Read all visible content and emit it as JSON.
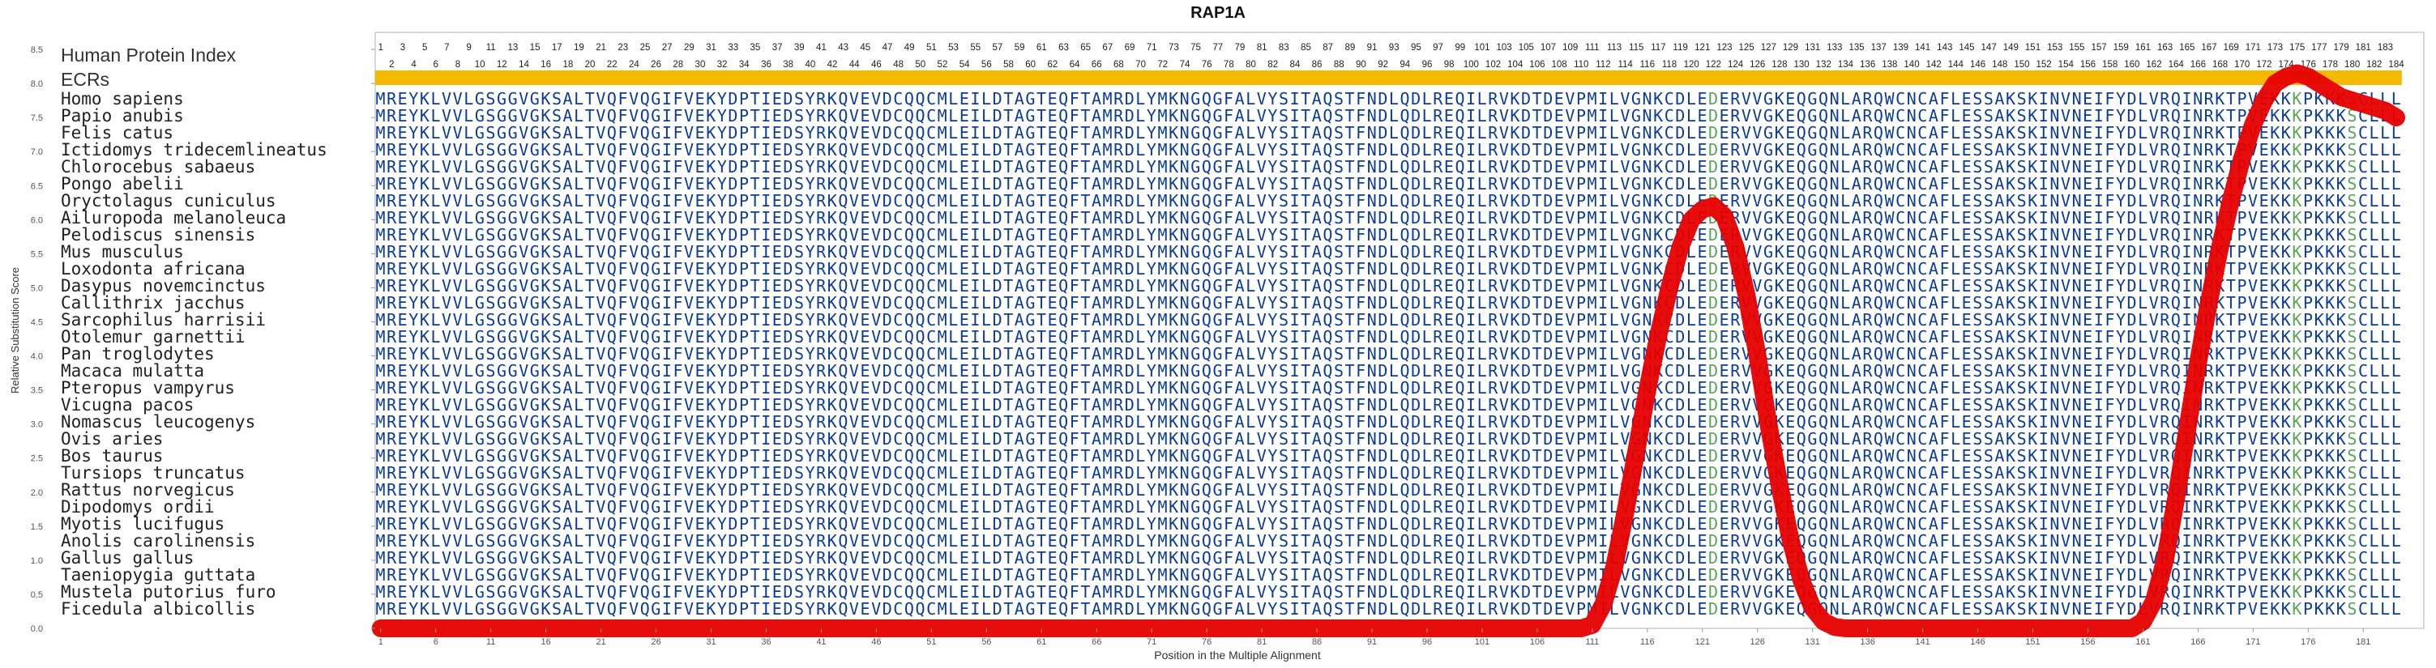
{
  "chart_data": {
    "type": "line",
    "title": "RAP1A",
    "xlabel": "Position in the Multiple Alignment",
    "ylabel": "Relative Substitution Score",
    "xlim": [
      0.5,
      186.5
    ],
    "ylim": [
      0,
      8.75
    ],
    "x_ticks": [
      1,
      6,
      11,
      16,
      21,
      26,
      31,
      36,
      41,
      46,
      51,
      56,
      61,
      66,
      71,
      76,
      81,
      86,
      91,
      96,
      101,
      106,
      111,
      116,
      121,
      126,
      131,
      136,
      141,
      146,
      151,
      156,
      161,
      166,
      171,
      176,
      181
    ],
    "y_ticks": [
      0.0,
      0.5,
      1.0,
      1.5,
      2.0,
      2.5,
      3.0,
      3.5,
      4.0,
      4.5,
      5.0,
      5.5,
      6.0,
      6.5,
      7.0,
      7.5,
      8.0,
      8.5
    ],
    "grid": false,
    "index_label": "Human Protein Index",
    "ecr_label": "ECRs",
    "ecr_color": "#f5b800",
    "sequence_color": "#0c3c96",
    "variable_color": "#5aa55a",
    "line_color": "#e60000",
    "sequence": "MREYKLVVLGSGGVGKSALTVQFVQGIFVEKYDPTIEDSYRKQVEVDCQQCMLEILDTAGTEQFTAMRDLYMKNGQGFALVYSITAQSTFNDLQDLREQILRVKDTDEVPMILVGNKCDLEDERVVGKEQGQNLARQWCNCAFLESSAKSKINVNEIFYDLVRQINRKTPVEKKKPKKKSCLLL",
    "variable_positions": [
      122,
      175,
      180
    ],
    "species": [
      "Homo sapiens",
      "Papio anubis",
      "Felis catus",
      "Ictidomys tridecemlineatus",
      "Chlorocebus sabaeus",
      "Pongo abelii",
      "Oryctolagus cuniculus",
      "Ailuropoda melanoleuca",
      "Pelodiscus sinensis",
      "Mus musculus",
      "Loxodonta africana",
      "Dasypus novemcinctus",
      "Callithrix jacchus",
      "Sarcophilus harrisii",
      "Otolemur garnettii",
      "Pan troglodytes",
      "Macaca mulatta",
      "Pteropus vampyrus",
      "Vicugna pacos",
      "Nomascus leucogenys",
      "Ovis aries",
      "Bos taurus",
      "Tursiops truncatus",
      "Rattus norvegicus",
      "Dipodomys ordii",
      "Myotis lucifugus",
      "Anolis carolinensis",
      "Gallus gallus",
      "Taeniopygia guttata",
      "Mustela putorius furo",
      "Ficedula albicollis"
    ],
    "series": [
      {
        "x": [
          1,
          110,
          111,
          112,
          113,
          114,
          115,
          116,
          117,
          118,
          119,
          120,
          121,
          122,
          123,
          124,
          125,
          126,
          127,
          128,
          129,
          130,
          131,
          132,
          133,
          134,
          135,
          160,
          161,
          162,
          163,
          164,
          165,
          166,
          167,
          168,
          169,
          170,
          171,
          172,
          173,
          174,
          175,
          176,
          177,
          178,
          179,
          180,
          181,
          182,
          183,
          184
        ],
        "y": [
          0.0,
          0.0,
          0.05,
          0.35,
          0.9,
          1.7,
          2.6,
          3.5,
          4.3,
          5.0,
          5.6,
          6.0,
          6.15,
          6.2,
          6.05,
          5.6,
          4.9,
          4.0,
          3.0,
          2.1,
          1.3,
          0.7,
          0.3,
          0.1,
          0.02,
          0.0,
          0.0,
          0.0,
          0.1,
          0.4,
          1.0,
          1.9,
          2.9,
          3.9,
          4.8,
          5.6,
          6.3,
          6.9,
          7.4,
          7.75,
          8.0,
          8.1,
          8.15,
          8.1,
          8.0,
          7.9,
          7.8,
          7.75,
          7.7,
          7.65,
          7.6,
          7.5
        ]
      }
    ]
  }
}
